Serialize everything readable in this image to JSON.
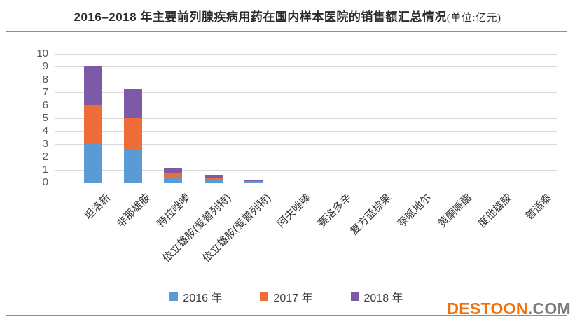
{
  "title": {
    "main": "2016–2018 年主要前列腺疾病用药在国内样本医院的销售额汇总情况",
    "unit_suffix": "(单位:亿元)"
  },
  "colors": {
    "series_2016": "#5B9BD5",
    "series_2017": "#ED6C38",
    "series_2018": "#7C5AA7",
    "gridline": "#D9D9D9",
    "frame_border": "#8F8F8F",
    "axis_text": "#595959",
    "watermark_orange": "#F07009",
    "watermark_gray": "#7D7D7D"
  },
  "legend": [
    {
      "label": "2016 年",
      "color": "#5B9BD5"
    },
    {
      "label": "2017 年",
      "color": "#ED6C38"
    },
    {
      "label": "2018 年",
      "color": "#7C5AA7"
    }
  ],
  "watermark": {
    "name": "DESTOON",
    "tld": ".COM"
  },
  "chart_data": {
    "type": "bar",
    "stacked": true,
    "title": "2016–2018 年主要前列腺疾病用药在国内样本医院的销售额汇总情况(单位:亿元)",
    "xlabel": "",
    "ylabel": "",
    "ylim": [
      0,
      10
    ],
    "yticks": [
      0,
      1,
      2,
      3,
      4,
      5,
      6,
      7,
      8,
      9,
      10
    ],
    "grid": true,
    "legend_position": "bottom",
    "categories": [
      "坦洛新",
      "非那雄胺",
      "特拉唑嗪",
      "依立雄胺(爱普列特)",
      "依立雄胺(爱普列特)",
      "阿夫唑嗪",
      "赛洛多辛",
      "复方蓝棕果",
      "萘哌地尔",
      "黄酮哌酯",
      "度他雄胺",
      "普适泰"
    ],
    "series": [
      {
        "name": "2016 年",
        "color": "#5B9BD5",
        "values": [
          3.0,
          2.5,
          0.35,
          0.15,
          0.05,
          0,
          0,
          0,
          0,
          0,
          0,
          0
        ]
      },
      {
        "name": "2017 年",
        "color": "#ED6C38",
        "values": [
          3.05,
          2.55,
          0.4,
          0.25,
          0.05,
          0,
          0,
          0,
          0,
          0,
          0,
          0
        ]
      },
      {
        "name": "2018 年",
        "color": "#7C5AA7",
        "values": [
          3.0,
          2.25,
          0.4,
          0.2,
          0.1,
          0,
          0,
          0,
          0,
          0,
          0,
          0
        ]
      }
    ]
  }
}
